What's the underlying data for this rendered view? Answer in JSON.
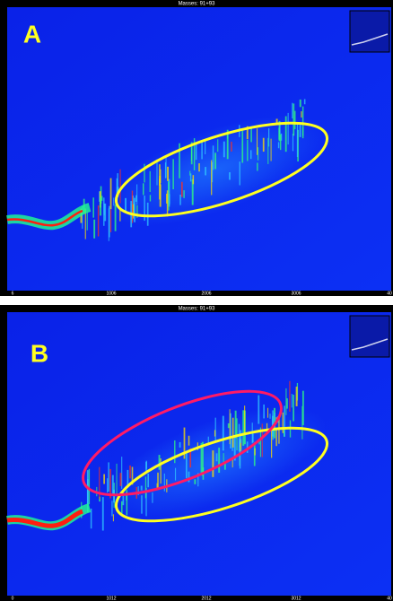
{
  "panels": [
    {
      "label": "A",
      "title": "Masses: 91+93",
      "x_labels": [
        "6",
        "1006",
        "2006",
        "3006",
        "40"
      ]
    },
    {
      "label": "B",
      "title": "Masses: 91+93",
      "x_labels": [
        "0",
        "1012",
        "2012",
        "3012",
        "40"
      ]
    }
  ]
}
